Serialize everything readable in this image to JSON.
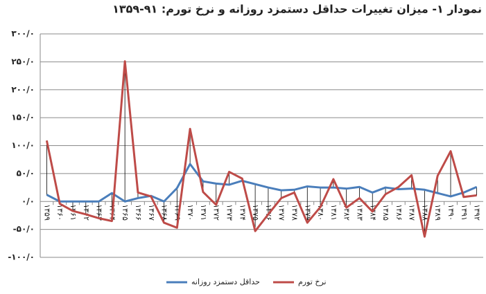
{
  "chart_data": {
    "type": "line",
    "title": "نمودار ۱- میزان تغییرات حداقل دستمزد روزانه و نرخ تورم: ۹۱-۱۳۵۹",
    "categories": [
      "۱۳۵۹",
      "۱۳۶۰",
      "۱۳۶۱",
      "۱۳۶۲",
      "۱۳۶۳",
      "۱۳۶۴",
      "۱۳۶۵",
      "۱۳۶۶",
      "۱۳۶۷",
      "۱۳۶۸",
      "۱۳۶۹",
      "۱۳۷۰",
      "۱۳۷۱",
      "۱۳۷۲",
      "۱۳۷۳",
      "۱۳۷۴",
      "۱۳۷۵",
      "۱۳۷۶",
      "۱۳۷۷",
      "۱۳۷۸",
      "۱۳۷۹",
      "۱۳۸۰",
      "۱۳۸۱",
      "۱۳۸۲",
      "۱۳۸۳",
      "۱۳۸۴",
      "۱۳۸۵",
      "۱۳۸۶",
      "۱۳۸۷",
      "۱۳۸۸",
      "۱۳۸۹",
      "۱۳۹۰",
      "۱۳۹۱",
      "۱۳۹۲"
    ],
    "series": [
      {
        "name": "حداقل دستمزد روزانه",
        "color": "#4a7ebb",
        "values": [
          12,
          0,
          0,
          0,
          0,
          15,
          0,
          6,
          10,
          0,
          24,
          67,
          36,
          32,
          30,
          37,
          31,
          25,
          20,
          21,
          27,
          25,
          25,
          23,
          26,
          16,
          25,
          22,
          23,
          21,
          15,
          9,
          16,
          26
        ]
      },
      {
        "name": "نرخ تورم",
        "color": "#be4b48",
        "values": [
          109,
          -4,
          -17,
          -23,
          -30,
          -35,
          251,
          16,
          9,
          -38,
          -47,
          130,
          17,
          -6,
          53,
          41,
          -53,
          -23,
          6,
          16,
          -38,
          -10,
          40,
          -11,
          6,
          -18,
          13,
          26,
          47,
          -63,
          46,
          90,
          8,
          11
        ]
      }
    ],
    "ylim": [
      -100,
      300
    ],
    "yticks": [
      {
        "value": -100,
        "label": "-۱۰۰/۰"
      },
      {
        "value": -50,
        "label": "-۵۰/۰"
      },
      {
        "value": 0,
        "label": "۰/۰"
      },
      {
        "value": 50,
        "label": "۵۰/۰"
      },
      {
        "value": 100,
        "label": "۱۰۰/۰"
      },
      {
        "value": 150,
        "label": "۱۵۰/۰"
      },
      {
        "value": 200,
        "label": "۲۰۰/۰"
      },
      {
        "value": 250,
        "label": "۲۵۰/۰"
      },
      {
        "value": 300,
        "label": "۳۰۰/۰"
      }
    ],
    "grid": true,
    "legend": "bottom"
  }
}
